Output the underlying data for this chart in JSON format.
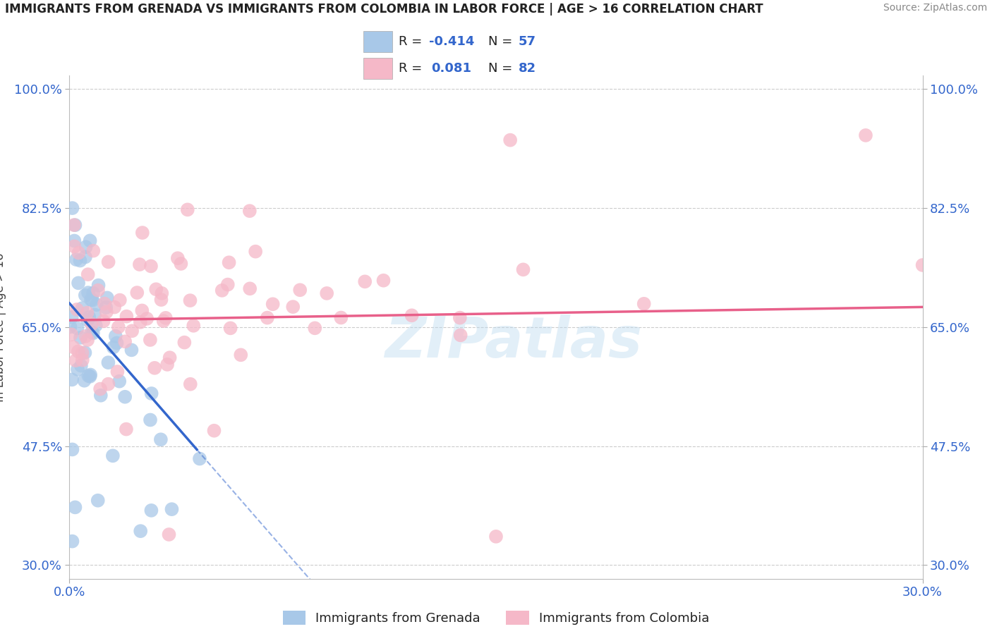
{
  "title": "IMMIGRANTS FROM GRENADA VS IMMIGRANTS FROM COLOMBIA IN LABOR FORCE | AGE > 16 CORRELATION CHART",
  "source": "Source: ZipAtlas.com",
  "ylabel": "In Labor Force | Age > 16",
  "xlim": [
    0.0,
    0.3
  ],
  "ylim": [
    0.28,
    1.02
  ],
  "yticks": [
    0.3,
    0.475,
    0.65,
    0.825,
    1.0
  ],
  "ytick_labels": [
    "30.0%",
    "47.5%",
    "65.0%",
    "82.5%",
    "100.0%"
  ],
  "xticks": [
    0.0,
    0.3
  ],
  "xtick_labels": [
    "0.0%",
    "30.0%"
  ],
  "grenada_R": -0.414,
  "grenada_N": 57,
  "colombia_R": 0.081,
  "colombia_N": 82,
  "grenada_color": "#a8c8e8",
  "colombia_color": "#f5b8c8",
  "grenada_line_color": "#3366cc",
  "colombia_line_color": "#e8608a",
  "watermark": "ZIPatlas",
  "background_color": "#ffffff",
  "grid_color": "#cccccc",
  "title_color": "#222222",
  "axis_label_color": "#444444",
  "tick_label_color": "#3366cc",
  "source_color": "#888888",
  "legend_text_color": "#222222",
  "legend_r_color": "#3366cc",
  "legend_n_color": "#3366cc"
}
